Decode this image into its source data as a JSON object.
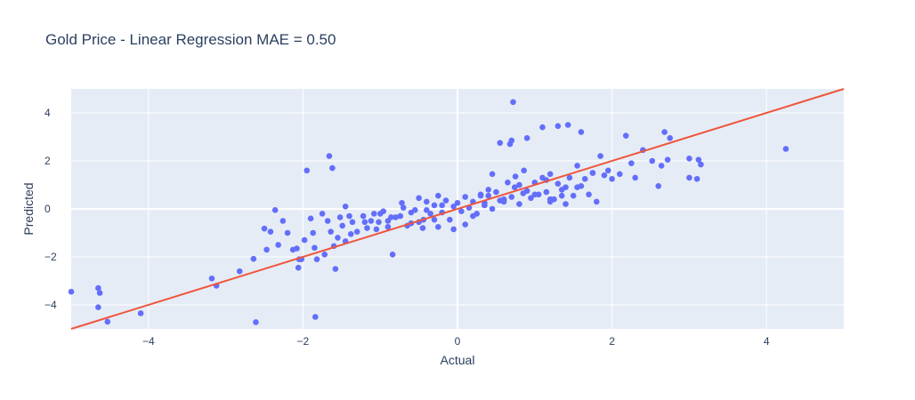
{
  "chart_data": {
    "type": "scatter",
    "title": "Gold Price - Linear Regression MAE = 0.50",
    "xlabel": "Actual",
    "ylabel": "Predicted",
    "xlim": [
      -5,
      5
    ],
    "ylim": [
      -5,
      5
    ],
    "xticks": [
      -4,
      -2,
      0,
      2,
      4
    ],
    "yticks": [
      -4,
      -2,
      0,
      2,
      4
    ],
    "grid": true,
    "legend": "none",
    "colors": {
      "points": "#636efa",
      "line": "#ef553b",
      "plot_bg": "#e5ecf6",
      "grid": "#ffffff",
      "text": "#2a3f5f"
    },
    "reference_line": {
      "x": [
        -5,
        5
      ],
      "y": [
        -5,
        5
      ]
    },
    "series": [
      {
        "x": [
          -5.0,
          -4.65,
          -4.63,
          -4.65,
          -4.53,
          -4.1,
          -3.18,
          -3.12,
          -2.82,
          -2.64,
          -2.61,
          -2.5,
          -2.47,
          -2.42,
          -2.36,
          -2.32,
          -2.2,
          -2.13,
          -2.08,
          -2.06,
          -2.02,
          -1.98,
          -1.9,
          -1.87,
          -1.85,
          -1.82,
          -1.75,
          -1.72,
          -1.68,
          -1.64,
          -1.6,
          -1.58,
          -1.55,
          -1.52,
          -1.49,
          -1.45,
          -1.4,
          -1.38,
          -1.36,
          -1.3,
          -1.22,
          -1.17,
          -1.12,
          -1.08,
          -1.02,
          -0.96,
          -0.9,
          -0.86,
          -0.84,
          -0.74,
          -0.72,
          -0.6,
          -0.55,
          -0.5,
          -0.44,
          -0.4,
          -0.35,
          -0.3,
          -0.25,
          -0.2,
          -0.15,
          -0.1,
          -0.05,
          0.0,
          0.05,
          0.1,
          0.15,
          0.2,
          0.25,
          0.3,
          0.35,
          0.4,
          0.45,
          0.5,
          0.55,
          0.6,
          0.65,
          0.7,
          0.74,
          0.8,
          0.86,
          0.9,
          0.95,
          1.0,
          1.05,
          1.1,
          1.15,
          1.2,
          1.25,
          1.3,
          1.35,
          1.4,
          1.45,
          1.5,
          1.55,
          1.6,
          1.65,
          1.7,
          1.75,
          1.8,
          1.85,
          1.9,
          1.95,
          2.0,
          2.1,
          2.18,
          2.25,
          2.3,
          2.4,
          2.52,
          2.6,
          2.64,
          2.68,
          2.72,
          2.75,
          3.0,
          3.0,
          3.1,
          3.12,
          3.15,
          4.25,
          -1.0,
          -0.8,
          -0.6,
          -0.4,
          -0.2,
          0.2,
          0.4,
          0.6,
          0.8,
          1.0,
          1.2,
          1.4,
          -1.2,
          -0.9,
          -0.7,
          0.3,
          0.7,
          0.9,
          1.1,
          1.3,
          1.6,
          0.72,
          0.68,
          0.55,
          1.43,
          1.2,
          0.75,
          0.45,
          -0.05,
          -0.25,
          -0.45,
          -0.65,
          -1.45,
          -1.05,
          -0.3,
          -0.5,
          0.1,
          0.35,
          0.6,
          0.85,
          1.15,
          1.35,
          1.55,
          1.75,
          -1.66,
          -1.84,
          -1.62,
          -1.95,
          -2.05,
          -2.26
        ],
        "y": [
          -3.45,
          -3.3,
          -3.5,
          -4.1,
          -4.7,
          -4.35,
          -2.9,
          -3.2,
          -2.6,
          -2.08,
          -4.72,
          -0.82,
          -1.7,
          -0.95,
          -0.05,
          -1.5,
          -1.0,
          -1.7,
          -1.65,
          -2.45,
          -2.1,
          -1.3,
          -0.4,
          -1.0,
          -1.62,
          -2.1,
          -0.2,
          -1.9,
          -0.5,
          -0.95,
          -1.55,
          -2.5,
          -1.2,
          -0.35,
          -0.7,
          -1.35,
          -0.3,
          -1.05,
          -0.55,
          -0.95,
          -0.3,
          -0.8,
          -0.5,
          -0.2,
          -0.55,
          -0.1,
          -0.75,
          -0.35,
          -1.9,
          -0.3,
          0.25,
          -0.6,
          -0.05,
          0.45,
          -0.45,
          0.3,
          -0.2,
          0.15,
          0.55,
          -0.15,
          0.35,
          -0.45,
          0.1,
          0.25,
          -0.1,
          0.5,
          0.05,
          0.3,
          -0.2,
          0.6,
          0.15,
          0.8,
          0.0,
          0.7,
          0.35,
          0.3,
          1.1,
          0.5,
          0.9,
          0.2,
          1.6,
          0.75,
          0.45,
          1.1,
          0.6,
          1.3,
          0.7,
          1.45,
          0.4,
          1.05,
          0.8,
          0.2,
          1.3,
          0.55,
          1.8,
          0.95,
          1.25,
          0.6,
          1.5,
          0.3,
          2.2,
          1.4,
          1.6,
          1.25,
          1.45,
          3.05,
          1.9,
          1.3,
          2.45,
          2.0,
          0.95,
          1.8,
          3.2,
          2.05,
          2.95,
          2.1,
          1.3,
          1.25,
          2.05,
          1.85,
          2.5,
          -0.2,
          -0.35,
          -0.15,
          -0.05,
          0.15,
          -0.3,
          0.55,
          0.4,
          1.0,
          0.6,
          0.3,
          0.9,
          -0.55,
          -0.5,
          0.05,
          0.55,
          2.85,
          2.95,
          3.4,
          3.45,
          3.2,
          4.45,
          2.7,
          2.75,
          3.5,
          0.4,
          1.35,
          1.45,
          -0.85,
          -0.75,
          -0.8,
          -0.7,
          0.1,
          -0.85,
          -0.45,
          -0.55,
          -0.65,
          0.25,
          0.35,
          0.65,
          1.2,
          0.55,
          0.9,
          1.5,
          2.2,
          -4.5,
          1.7,
          1.6,
          -2.1,
          -0.5
        ],
        "marker": "circle"
      }
    ]
  }
}
